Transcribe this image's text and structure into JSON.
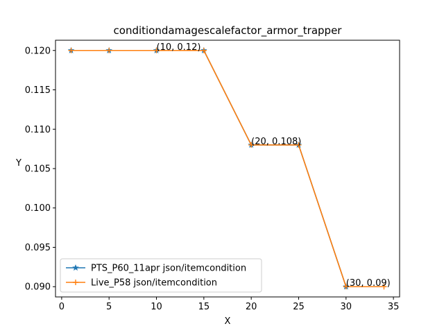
{
  "chart_data": {
    "type": "line",
    "title": "conditiondamagescalefactor_armor_trapper",
    "xlabel": "X",
    "ylabel": "Y",
    "xlim": [
      -0.65,
      35.65
    ],
    "ylim": [
      0.0887,
      0.1213
    ],
    "xticks": [
      0,
      5,
      10,
      15,
      20,
      25,
      30,
      35
    ],
    "yticks": [
      0.09,
      0.095,
      0.1,
      0.105,
      0.11,
      0.115,
      0.12
    ],
    "xtick_labels": [
      "0",
      "5",
      "10",
      "15",
      "20",
      "25",
      "30",
      "35"
    ],
    "ytick_labels": [
      "0.090",
      "0.095",
      "0.100",
      "0.105",
      "0.110",
      "0.115",
      "0.120"
    ],
    "grid": false,
    "legend_position": "lower-left",
    "series": [
      {
        "name": "PTS_P60_11apr json/itemcondition",
        "color": "#1f77b4",
        "marker": "star",
        "x": [
          1,
          5,
          10,
          15,
          20,
          25,
          30
        ],
        "y": [
          0.12,
          0.12,
          0.12,
          0.12,
          0.108,
          0.108,
          0.09
        ]
      },
      {
        "name": "Live_P58 json/itemcondition",
        "color": "#ff7f0e",
        "marker": "plus",
        "x": [
          1,
          5,
          10,
          15,
          20,
          25,
          30,
          34
        ],
        "y": [
          0.12,
          0.12,
          0.12,
          0.12,
          0.108,
          0.108,
          0.09,
          0.09
        ]
      }
    ],
    "annotations": [
      {
        "text": "(10, 0.12)",
        "x": 10,
        "y": 0.12
      },
      {
        "text": "(20, 0.108)",
        "x": 20,
        "y": 0.108
      },
      {
        "text": "(30, 0.09)",
        "x": 30,
        "y": 0.09
      }
    ]
  }
}
